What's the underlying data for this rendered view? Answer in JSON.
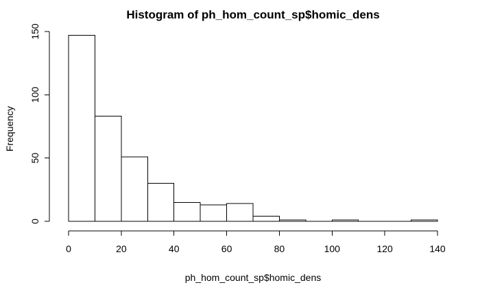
{
  "chart_data": {
    "type": "bar",
    "title": "Histogram of ph_hom_count_sp$homic_dens",
    "xlabel": "ph_hom_count_sp$homic_dens",
    "ylabel": "Frequency",
    "bin_width": 10,
    "bins": [
      {
        "start": 0,
        "end": 10,
        "count": 147
      },
      {
        "start": 10,
        "end": 20,
        "count": 83
      },
      {
        "start": 20,
        "end": 30,
        "count": 51
      },
      {
        "start": 30,
        "end": 40,
        "count": 30
      },
      {
        "start": 40,
        "end": 50,
        "count": 15
      },
      {
        "start": 50,
        "end": 60,
        "count": 13
      },
      {
        "start": 60,
        "end": 70,
        "count": 14
      },
      {
        "start": 70,
        "end": 80,
        "count": 4
      },
      {
        "start": 80,
        "end": 90,
        "count": 1
      },
      {
        "start": 90,
        "end": 100,
        "count": 0
      },
      {
        "start": 100,
        "end": 110,
        "count": 1
      },
      {
        "start": 110,
        "end": 120,
        "count": 0
      },
      {
        "start": 120,
        "end": 130,
        "count": 0
      },
      {
        "start": 130,
        "end": 140,
        "count": 1
      }
    ],
    "xlim": [
      0,
      140
    ],
    "ylim": [
      0,
      150
    ],
    "x_ticks": [
      0,
      20,
      40,
      60,
      80,
      100,
      120,
      140
    ],
    "y_ticks": [
      0,
      50,
      100,
      150
    ],
    "bar_fill": "#ffffff",
    "bar_stroke": "#000000",
    "grid": false,
    "legend": "none"
  }
}
